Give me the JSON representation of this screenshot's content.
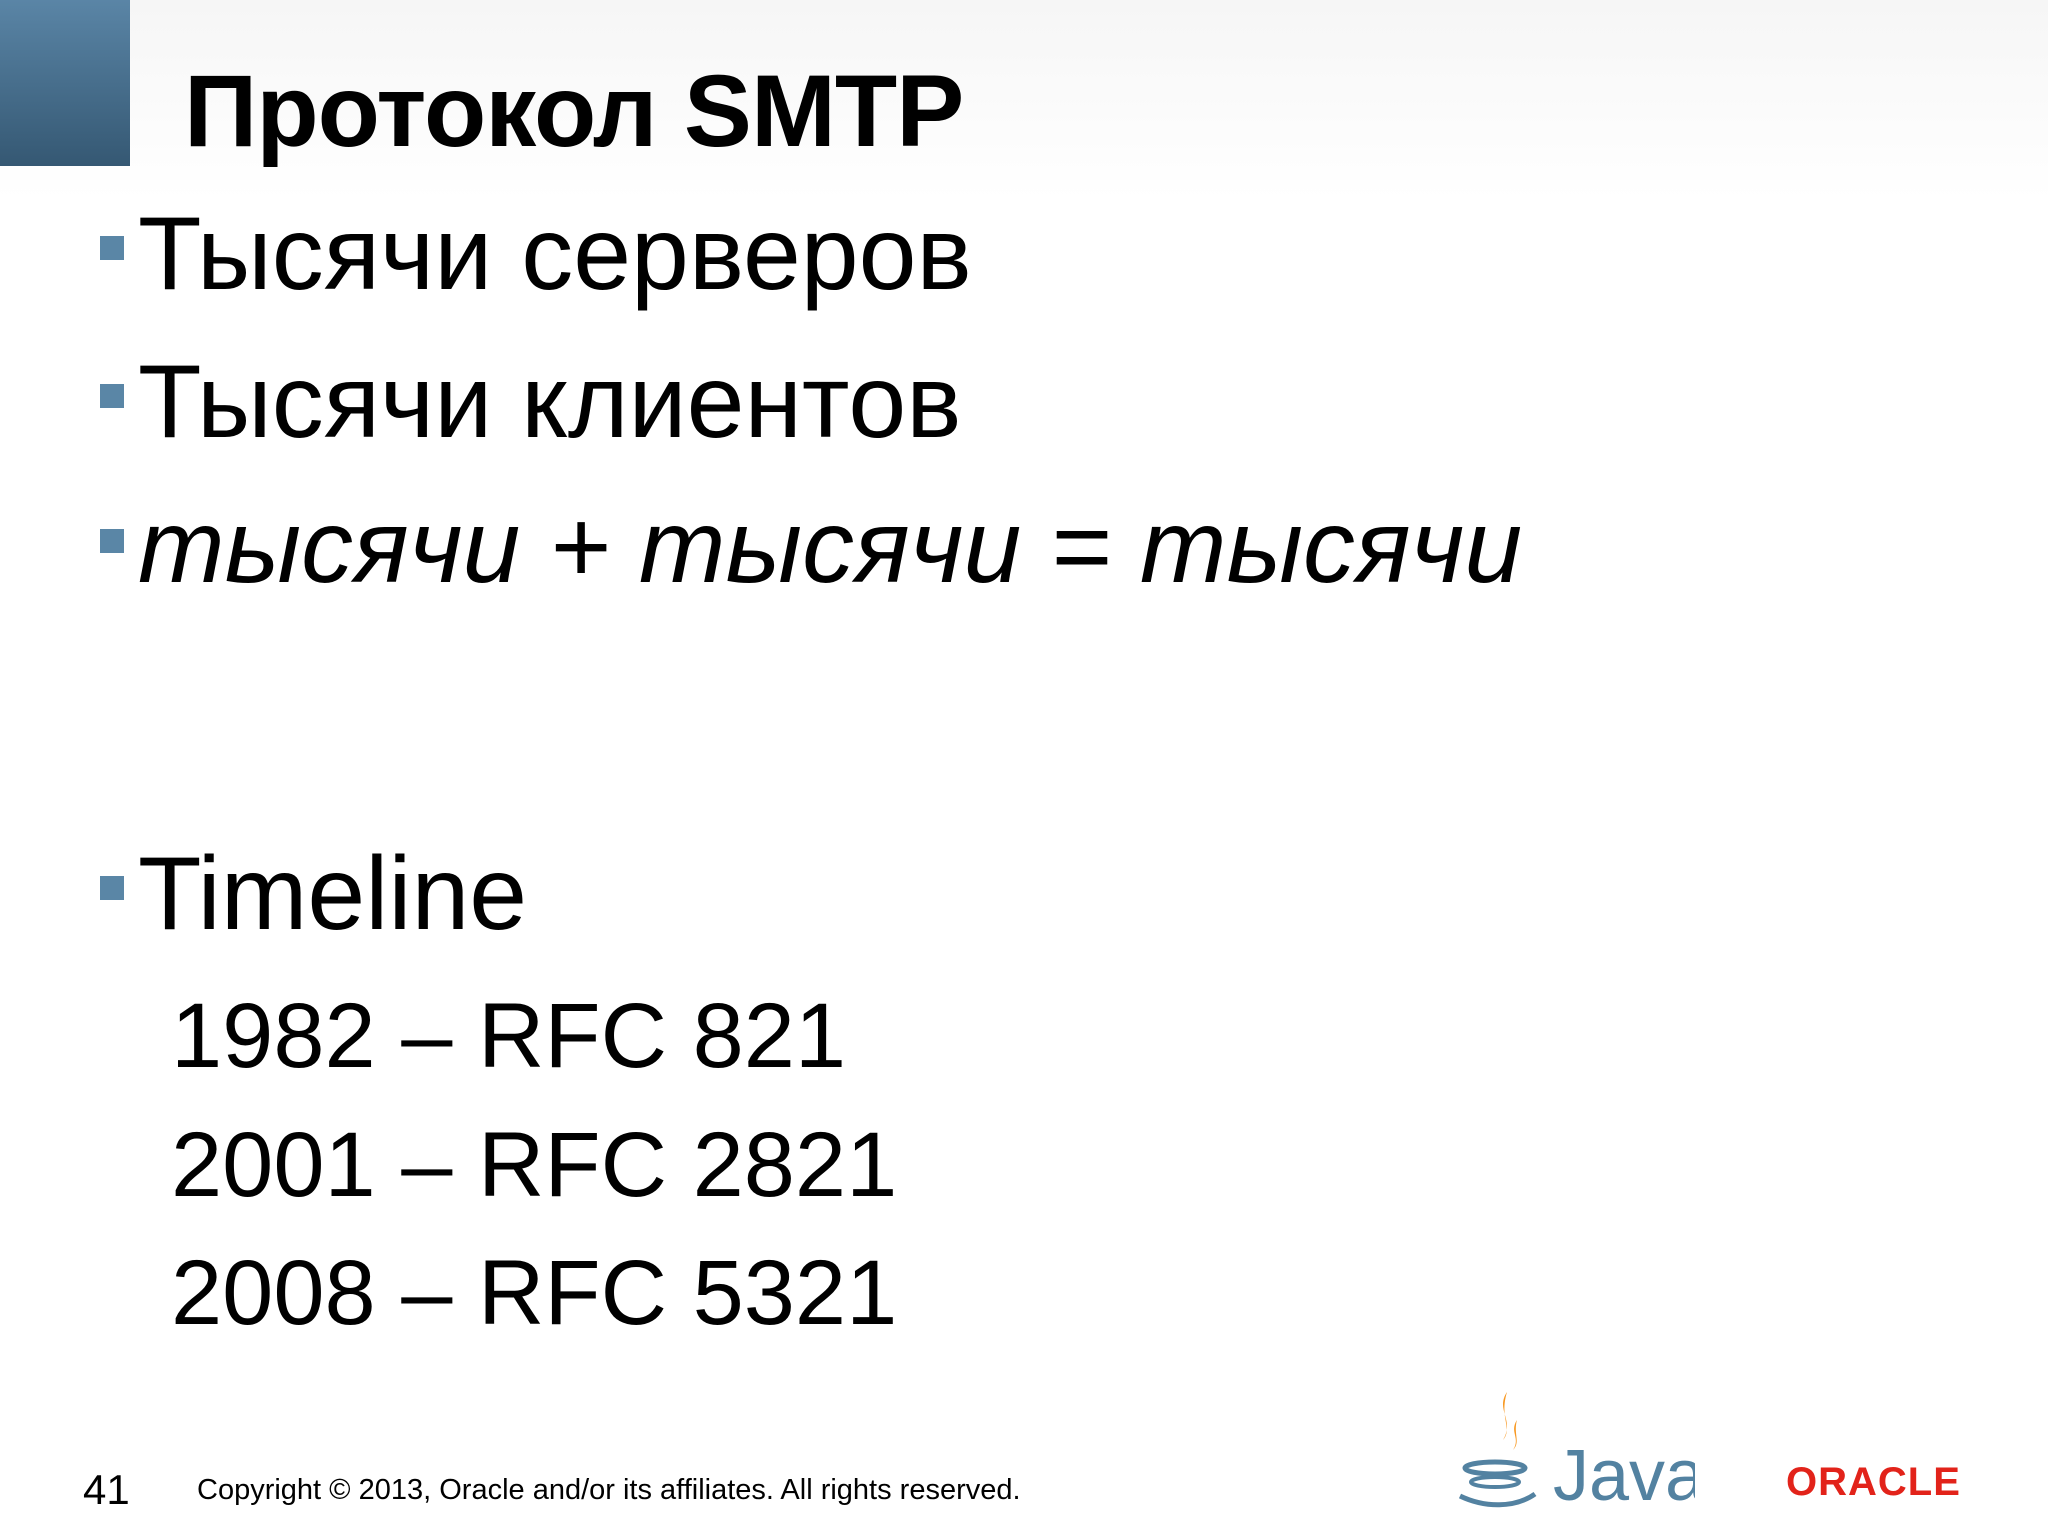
{
  "slide": {
    "title": "Протокол SMTP",
    "bullets": [
      {
        "text": "Тысячи серверов",
        "italic": false
      },
      {
        "text": "Тысячи клиентов",
        "italic": false
      },
      {
        "text": "тысячи + тысячи = тысячи",
        "italic": true
      },
      {
        "text": "Timeline",
        "italic": false
      }
    ],
    "timeline": [
      "1982 – RFC 821",
      "2001 – RFC 2821",
      "2008 – RFC 5321"
    ],
    "colors": {
      "accent": "#4a7090",
      "bullet": "#5a86a6",
      "oracle_red": "#e2231a",
      "java_blue": "#5382a1",
      "java_orange": "#f89820"
    }
  },
  "footer": {
    "page_number": "41",
    "copyright": "Copyright © 2013, Oracle and/or its affiliates. All rights reserved.",
    "java_logo": "Java",
    "oracle_logo": "ORACLE"
  }
}
